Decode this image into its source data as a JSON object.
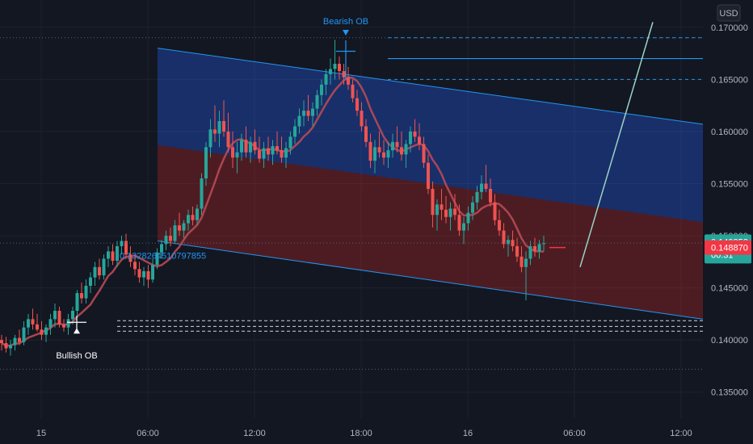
{
  "chart_data": {
    "type": "candlestick",
    "currency": "USD",
    "y_ticks": [
      "0.135000",
      "0.140000",
      "0.145000",
      "0.150000",
      "0.155000",
      "0.160000",
      "0.165000",
      "0.170000"
    ],
    "ylim": [
      0.1325,
      0.172
    ],
    "x_ticks": [
      {
        "label": "15",
        "bar": 2
      },
      {
        "label": "06:00",
        "bar": 26
      },
      {
        "label": "12:00",
        "bar": 50
      },
      {
        "label": "18:00",
        "bar": 74
      },
      {
        "label": "16",
        "bar": 98
      },
      {
        "label": "06:00",
        "bar": 122
      },
      {
        "label": "12:00",
        "bar": 146
      }
    ],
    "candles": [
      [
        0.14,
        0.1405,
        0.139,
        0.1397
      ],
      [
        0.1397,
        0.1403,
        0.1388,
        0.1392
      ],
      [
        0.1392,
        0.14,
        0.1385,
        0.1395
      ],
      [
        0.1395,
        0.1405,
        0.139,
        0.1402
      ],
      [
        0.1402,
        0.141,
        0.1395,
        0.1398
      ],
      [
        0.1398,
        0.1418,
        0.1395,
        0.1412
      ],
      [
        0.1412,
        0.1425,
        0.1405,
        0.142
      ],
      [
        0.142,
        0.143,
        0.141,
        0.1415
      ],
      [
        0.1415,
        0.1425,
        0.1408,
        0.141
      ],
      [
        0.141,
        0.1418,
        0.14,
        0.1405
      ],
      [
        0.1405,
        0.1415,
        0.1398,
        0.1412
      ],
      [
        0.1412,
        0.1425,
        0.1405,
        0.142
      ],
      [
        0.142,
        0.1435,
        0.1412,
        0.1428
      ],
      [
        0.1428,
        0.1432,
        0.1412,
        0.1415
      ],
      [
        0.1415,
        0.142,
        0.1408,
        0.1412
      ],
      [
        0.1412,
        0.1425,
        0.1405,
        0.142
      ],
      [
        0.142,
        0.1432,
        0.1415,
        0.1428
      ],
      [
        0.1428,
        0.1448,
        0.1422,
        0.1445
      ],
      [
        0.1445,
        0.1455,
        0.1435,
        0.144
      ],
      [
        0.144,
        0.1458,
        0.1435,
        0.1452
      ],
      [
        0.1452,
        0.1465,
        0.1445,
        0.146
      ],
      [
        0.146,
        0.1475,
        0.1452,
        0.147
      ],
      [
        0.147,
        0.1478,
        0.1458,
        0.1462
      ],
      [
        0.1462,
        0.1482,
        0.1458,
        0.1478
      ],
      [
        0.1478,
        0.149,
        0.147,
        0.1485
      ],
      [
        0.1485,
        0.1492,
        0.1472,
        0.1476
      ],
      [
        0.1476,
        0.1495,
        0.147,
        0.149
      ],
      [
        0.149,
        0.15,
        0.1482,
        0.1495
      ],
      [
        0.1495,
        0.1502,
        0.1478,
        0.1482
      ],
      [
        0.1482,
        0.149,
        0.147,
        0.1475
      ],
      [
        0.1475,
        0.1482,
        0.1462,
        0.1468
      ],
      [
        0.1468,
        0.1475,
        0.1455,
        0.146
      ],
      [
        0.146,
        0.147,
        0.1452,
        0.1466
      ],
      [
        0.1466,
        0.1472,
        0.145,
        0.1458
      ],
      [
        0.1458,
        0.1478,
        0.1455,
        0.1472
      ],
      [
        0.1472,
        0.1488,
        0.1468,
        0.1484
      ],
      [
        0.1484,
        0.1496,
        0.1478,
        0.1492
      ],
      [
        0.1492,
        0.1505,
        0.1486,
        0.15
      ],
      [
        0.15,
        0.1508,
        0.149,
        0.1495
      ],
      [
        0.1495,
        0.1515,
        0.1492,
        0.151
      ],
      [
        0.151,
        0.1522,
        0.15,
        0.1505
      ],
      [
        0.1505,
        0.1515,
        0.1498,
        0.1512
      ],
      [
        0.1512,
        0.1525,
        0.1505,
        0.152
      ],
      [
        0.152,
        0.1528,
        0.151,
        0.1515
      ],
      [
        0.1515,
        0.153,
        0.151,
        0.1526
      ],
      [
        0.1526,
        0.156,
        0.152,
        0.1555
      ],
      [
        0.1555,
        0.159,
        0.1548,
        0.1585
      ],
      [
        0.1585,
        0.1612,
        0.1575,
        0.1602
      ],
      [
        0.1602,
        0.1625,
        0.159,
        0.1598
      ],
      [
        0.1598,
        0.162,
        0.1585,
        0.161
      ],
      [
        0.161,
        0.163,
        0.1595,
        0.16
      ],
      [
        0.16,
        0.1618,
        0.158,
        0.1585
      ],
      [
        0.1585,
        0.16,
        0.1565,
        0.1575
      ],
      [
        0.1575,
        0.159,
        0.156,
        0.158
      ],
      [
        0.158,
        0.1598,
        0.1572,
        0.1592
      ],
      [
        0.1592,
        0.1605,
        0.1575,
        0.158
      ],
      [
        0.158,
        0.1595,
        0.157,
        0.159
      ],
      [
        0.159,
        0.1602,
        0.1578,
        0.1582
      ],
      [
        0.1582,
        0.1595,
        0.157,
        0.1574
      ],
      [
        0.1574,
        0.159,
        0.1565,
        0.1584
      ],
      [
        0.1584,
        0.1595,
        0.1572,
        0.1578
      ],
      [
        0.1578,
        0.1592,
        0.1568,
        0.1586
      ],
      [
        0.1586,
        0.16,
        0.1578,
        0.1582
      ],
      [
        0.1582,
        0.1595,
        0.157,
        0.1575
      ],
      [
        0.1575,
        0.159,
        0.1565,
        0.1584
      ],
      [
        0.1584,
        0.16,
        0.1578,
        0.1595
      ],
      [
        0.1595,
        0.1612,
        0.1588,
        0.1605
      ],
      [
        0.1605,
        0.1622,
        0.1598,
        0.1615
      ],
      [
        0.1615,
        0.163,
        0.1605,
        0.162
      ],
      [
        0.162,
        0.1635,
        0.161,
        0.1615
      ],
      [
        0.1615,
        0.1628,
        0.1605,
        0.1622
      ],
      [
        0.1622,
        0.164,
        0.1615,
        0.1635
      ],
      [
        0.1635,
        0.165,
        0.1625,
        0.1645
      ],
      [
        0.1645,
        0.166,
        0.1635,
        0.1655
      ],
      [
        0.1655,
        0.167,
        0.1645,
        0.166
      ],
      [
        0.166,
        0.1688,
        0.165,
        0.1665
      ],
      [
        0.1665,
        0.1672,
        0.165,
        0.1658
      ],
      [
        0.1658,
        0.1665,
        0.1645,
        0.1652
      ],
      [
        0.1652,
        0.1662,
        0.164,
        0.1645
      ],
      [
        0.1645,
        0.165,
        0.1628,
        0.1632
      ],
      [
        0.1632,
        0.164,
        0.1615,
        0.162
      ],
      [
        0.162,
        0.1628,
        0.16,
        0.1605
      ],
      [
        0.1605,
        0.1612,
        0.1585,
        0.159
      ],
      [
        0.159,
        0.1598,
        0.1565,
        0.1572
      ],
      [
        0.1572,
        0.1592,
        0.156,
        0.1585
      ],
      [
        0.1585,
        0.16,
        0.1575,
        0.158
      ],
      [
        0.158,
        0.1592,
        0.1568,
        0.1575
      ],
      [
        0.1575,
        0.159,
        0.1565,
        0.1582
      ],
      [
        0.1582,
        0.1598,
        0.1575,
        0.159
      ],
      [
        0.159,
        0.1605,
        0.158,
        0.1585
      ],
      [
        0.1585,
        0.16,
        0.1572,
        0.1578
      ],
      [
        0.1578,
        0.1592,
        0.1565,
        0.1588
      ],
      [
        0.1588,
        0.1605,
        0.158,
        0.16
      ],
      [
        0.16,
        0.1612,
        0.159,
        0.1595
      ],
      [
        0.1595,
        0.1608,
        0.1582,
        0.1588
      ],
      [
        0.1588,
        0.1595,
        0.1565,
        0.157
      ],
      [
        0.157,
        0.1578,
        0.154,
        0.1545
      ],
      [
        0.1545,
        0.1552,
        0.1508,
        0.152
      ],
      [
        0.152,
        0.1535,
        0.1505,
        0.153
      ],
      [
        0.153,
        0.1545,
        0.1515,
        0.1525
      ],
      [
        0.1525,
        0.1538,
        0.1512,
        0.1518
      ],
      [
        0.1518,
        0.1532,
        0.1505,
        0.1526
      ],
      [
        0.1526,
        0.154,
        0.1515,
        0.152
      ],
      [
        0.152,
        0.153,
        0.15,
        0.1505
      ],
      [
        0.1505,
        0.1518,
        0.1492,
        0.1512
      ],
      [
        0.1512,
        0.1528,
        0.1505,
        0.1522
      ],
      [
        0.1522,
        0.1538,
        0.1515,
        0.1532
      ],
      [
        0.1532,
        0.1548,
        0.1525,
        0.1542
      ],
      [
        0.1542,
        0.1558,
        0.1535,
        0.155
      ],
      [
        0.155,
        0.1568,
        0.1542,
        0.1545
      ],
      [
        0.1545,
        0.1555,
        0.1528,
        0.1532
      ],
      [
        0.1532,
        0.154,
        0.151,
        0.1515
      ],
      [
        0.1515,
        0.1525,
        0.15,
        0.1505
      ],
      [
        0.1505,
        0.1512,
        0.1488,
        0.1492
      ],
      [
        0.1492,
        0.15,
        0.148,
        0.1496
      ],
      [
        0.1496,
        0.1505,
        0.1485,
        0.149
      ],
      [
        0.149,
        0.1498,
        0.1475,
        0.148
      ],
      [
        0.148,
        0.149,
        0.1465,
        0.147
      ],
      [
        0.147,
        0.1485,
        0.1438,
        0.1478
      ],
      [
        0.1478,
        0.1495,
        0.1472,
        0.149
      ],
      [
        0.149,
        0.1498,
        0.148,
        0.1485
      ],
      [
        0.1485,
        0.1496,
        0.1478,
        0.1492
      ],
      [
        0.1492,
        0.15,
        0.1485,
        0.1493
      ]
    ],
    "labels": {
      "bearish_ob": "Bearish OB",
      "bullish_ob": "Bullish OB",
      "channel_value": "0.1328264510797855"
    },
    "price_tags": {
      "current": "0.149352",
      "countdown": "00:31",
      "lower": "0.148870"
    },
    "colors": {
      "up": "#26a69a",
      "down": "#ef5350",
      "ma": "#b74a55",
      "channel_upper_fill": "#2962ff",
      "channel_lower_fill": "#c62828",
      "channel_line": "#2196f3",
      "projection": "#9ad3c6",
      "tag_green": "#26a69a",
      "tag_red": "#f23645"
    }
  }
}
